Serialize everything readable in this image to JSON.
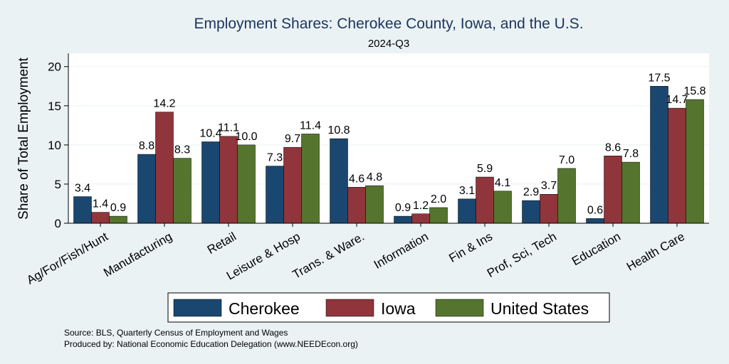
{
  "chart_data": {
    "type": "bar",
    "title": "Employment Shares: Cherokee County, Iowa, and the U.S.",
    "subtitle": "2024-Q3",
    "xlabel": "",
    "ylabel": "Share of Total Employment",
    "ylim": [
      0,
      21.7
    ],
    "yticks": [
      0,
      5,
      10,
      15,
      20
    ],
    "grid": true,
    "legend_position": "bottom",
    "categories": [
      "Ag/For/Fish/Hunt",
      "Manufacturing",
      "Retail",
      "Leisure & Hosp",
      "Trans. & Ware.",
      "Information",
      "Fin & Ins",
      "Prof, Sci, Tech",
      "Education",
      "Health Care"
    ],
    "series": [
      {
        "name": "Cherokee",
        "color": "#1a476f",
        "values": [
          3.4,
          8.8,
          10.4,
          7.3,
          10.8,
          0.9,
          3.1,
          2.9,
          0.6,
          17.5
        ]
      },
      {
        "name": "Iowa",
        "color": "#90353b",
        "values": [
          1.4,
          14.2,
          11.1,
          9.7,
          4.6,
          1.2,
          5.9,
          3.7,
          8.6,
          14.7
        ]
      },
      {
        "name": "United States",
        "color": "#55752f",
        "values": [
          0.9,
          8.3,
          10.0,
          11.4,
          4.8,
          2.0,
          4.1,
          7.0,
          7.8,
          15.8
        ]
      }
    ],
    "notes": [
      "Source: BLS, Quarterly Census of Employment and Wages",
      "Produced by: National Economic Education Delegation (www.NEEDEcon.org)"
    ]
  }
}
